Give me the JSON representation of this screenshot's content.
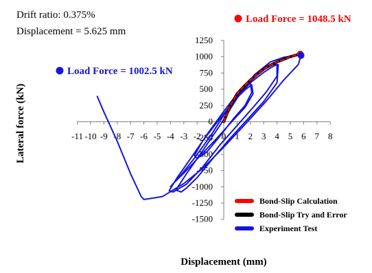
{
  "colors": {
    "experiment": "#1515d9",
    "calculation": "#ff0000",
    "try_error": "#000000"
  },
  "info_text": {
    "line1": "Drift ratio: 0.375%",
    "line2": "Displacement  = 5.625 mm"
  },
  "annotations": {
    "positive": {
      "label": "Load Force = 1048.5 kN",
      "x": 5.75,
      "y": 1048.5,
      "color": "#ff0000"
    },
    "negative": {
      "label": "Load Force = 1002.5 kN",
      "x": -10,
      "y": 1002.5,
      "color": "#1515d9"
    }
  },
  "chart_data": {
    "type": "line",
    "xlabel": "Displacement (mm)",
    "ylabel": "Lateral force (kN)",
    "xlim": [
      -11,
      8
    ],
    "ylim": [
      -1500,
      1250
    ],
    "x_ticks": [
      "-11",
      "-10",
      "-9",
      "-8",
      "-7",
      "-6",
      "-5",
      "-4",
      "-3",
      "-2",
      "-1",
      "0",
      "1",
      "2",
      "3",
      "4",
      "5",
      "6",
      "7",
      "8"
    ],
    "y_ticks": [
      "1250",
      "1000",
      "750",
      "500",
      "250",
      "0",
      "-250",
      "-500",
      "-750",
      "-1000",
      "-1250",
      "-1500"
    ],
    "legend": [
      "Bond-Slip  Calculation",
      "Bond-Slip  Try and Error",
      "Experiment  Test"
    ],
    "series": [
      {
        "name": "Experiment  Test",
        "color": "#1515d9",
        "points": [
          [
            0,
            0
          ],
          [
            0.3,
            150
          ],
          [
            0.8,
            350
          ],
          [
            1.3,
            470
          ],
          [
            1.8,
            560
          ],
          [
            2.0,
            590
          ],
          [
            2.1,
            450
          ],
          [
            1.6,
            250
          ],
          [
            0.7,
            40
          ],
          [
            0.1,
            -120
          ],
          [
            -0.6,
            -300
          ],
          [
            -1.3,
            -470
          ],
          [
            -2.0,
            -560
          ],
          [
            -2.2,
            -520
          ],
          [
            -1.6,
            -300
          ],
          [
            -0.7,
            -60
          ],
          [
            0,
            120
          ],
          [
            0.8,
            330
          ],
          [
            1.6,
            490
          ],
          [
            2.1,
            570
          ],
          [
            2.2,
            430
          ],
          [
            1.6,
            220
          ],
          [
            0.6,
            0
          ],
          [
            -0.5,
            -250
          ],
          [
            -1.8,
            -530
          ],
          [
            -3.0,
            -790
          ],
          [
            -3.8,
            -950
          ],
          [
            -4.0,
            -1000
          ],
          [
            -3.3,
            -840
          ],
          [
            -2.2,
            -560
          ],
          [
            -1.0,
            -220
          ],
          [
            0,
            100
          ],
          [
            1.0,
            380
          ],
          [
            2.0,
            600
          ],
          [
            3.0,
            760
          ],
          [
            3.6,
            840
          ],
          [
            4.0,
            880
          ],
          [
            4.0,
            700
          ],
          [
            3.2,
            460
          ],
          [
            2.2,
            220
          ],
          [
            1.0,
            -60
          ],
          [
            -0.3,
            -360
          ],
          [
            -1.6,
            -700
          ],
          [
            -2.8,
            -960
          ],
          [
            -3.8,
            -1080
          ],
          [
            -4.1,
            -1060
          ],
          [
            -3.5,
            -860
          ],
          [
            -2.4,
            -540
          ],
          [
            -1.2,
            -180
          ],
          [
            0,
            160
          ],
          [
            1.2,
            480
          ],
          [
            2.5,
            740
          ],
          [
            3.6,
            880
          ],
          [
            4.1,
            880
          ],
          [
            4.0,
            600
          ],
          [
            3.0,
            310
          ],
          [
            1.8,
            40
          ],
          [
            0.5,
            -250
          ],
          [
            -0.8,
            -560
          ],
          [
            -2.0,
            -860
          ],
          [
            -2.8,
            -1020
          ],
          [
            -3.2,
            -1080
          ],
          [
            -3.6,
            -1050
          ],
          [
            -2.8,
            -800
          ],
          [
            -1.6,
            -450
          ],
          [
            -0.3,
            -60
          ],
          [
            1.0,
            360
          ],
          [
            2.3,
            720
          ],
          [
            3.5,
            920
          ],
          [
            4.5,
            990
          ],
          [
            5.3,
            1020
          ],
          [
            5.75,
            1030
          ],
          [
            5.8,
            1020
          ],
          [
            5.6,
            880
          ],
          [
            4.5,
            640
          ],
          [
            3.2,
            320
          ],
          [
            1.6,
            -40
          ],
          [
            0,
            -390
          ],
          [
            -1.6,
            -720
          ],
          [
            -3.0,
            -950
          ],
          [
            -4.2,
            -1100
          ],
          [
            -4.6,
            -1150
          ],
          [
            -5.5,
            -1180
          ],
          [
            -6.0,
            -1195
          ],
          [
            -6.2,
            -1150
          ],
          [
            -7.0,
            -800
          ],
          [
            -8.0,
            -300
          ],
          [
            -9.0,
            150
          ],
          [
            -9.5,
            390
          ]
        ]
      },
      {
        "name": "Bond-Slip  Try and Error",
        "color": "#000000",
        "points": [
          [
            0,
            0
          ],
          [
            0.5,
            250
          ],
          [
            1.0,
            430
          ],
          [
            1.5,
            540
          ],
          [
            2.0,
            640
          ],
          [
            2.5,
            730
          ],
          [
            3.0,
            810
          ],
          [
            3.5,
            870
          ],
          [
            4.0,
            920
          ],
          [
            4.5,
            960
          ],
          [
            5.0,
            1000
          ],
          [
            5.5,
            1030
          ],
          [
            5.75,
            1050
          ]
        ]
      },
      {
        "name": "Bond-Slip  Calculation",
        "color": "#ff0000",
        "points": [
          [
            0,
            0
          ],
          [
            0.5,
            250
          ],
          [
            1.0,
            430
          ],
          [
            1.5,
            540
          ],
          [
            2.0,
            640
          ],
          [
            2.5,
            730
          ],
          [
            3.0,
            810
          ],
          [
            3.5,
            870
          ],
          [
            4.0,
            920
          ],
          [
            4.5,
            960
          ],
          [
            5.0,
            1000
          ],
          [
            5.5,
            1030
          ],
          [
            5.75,
            1050
          ]
        ]
      }
    ]
  }
}
